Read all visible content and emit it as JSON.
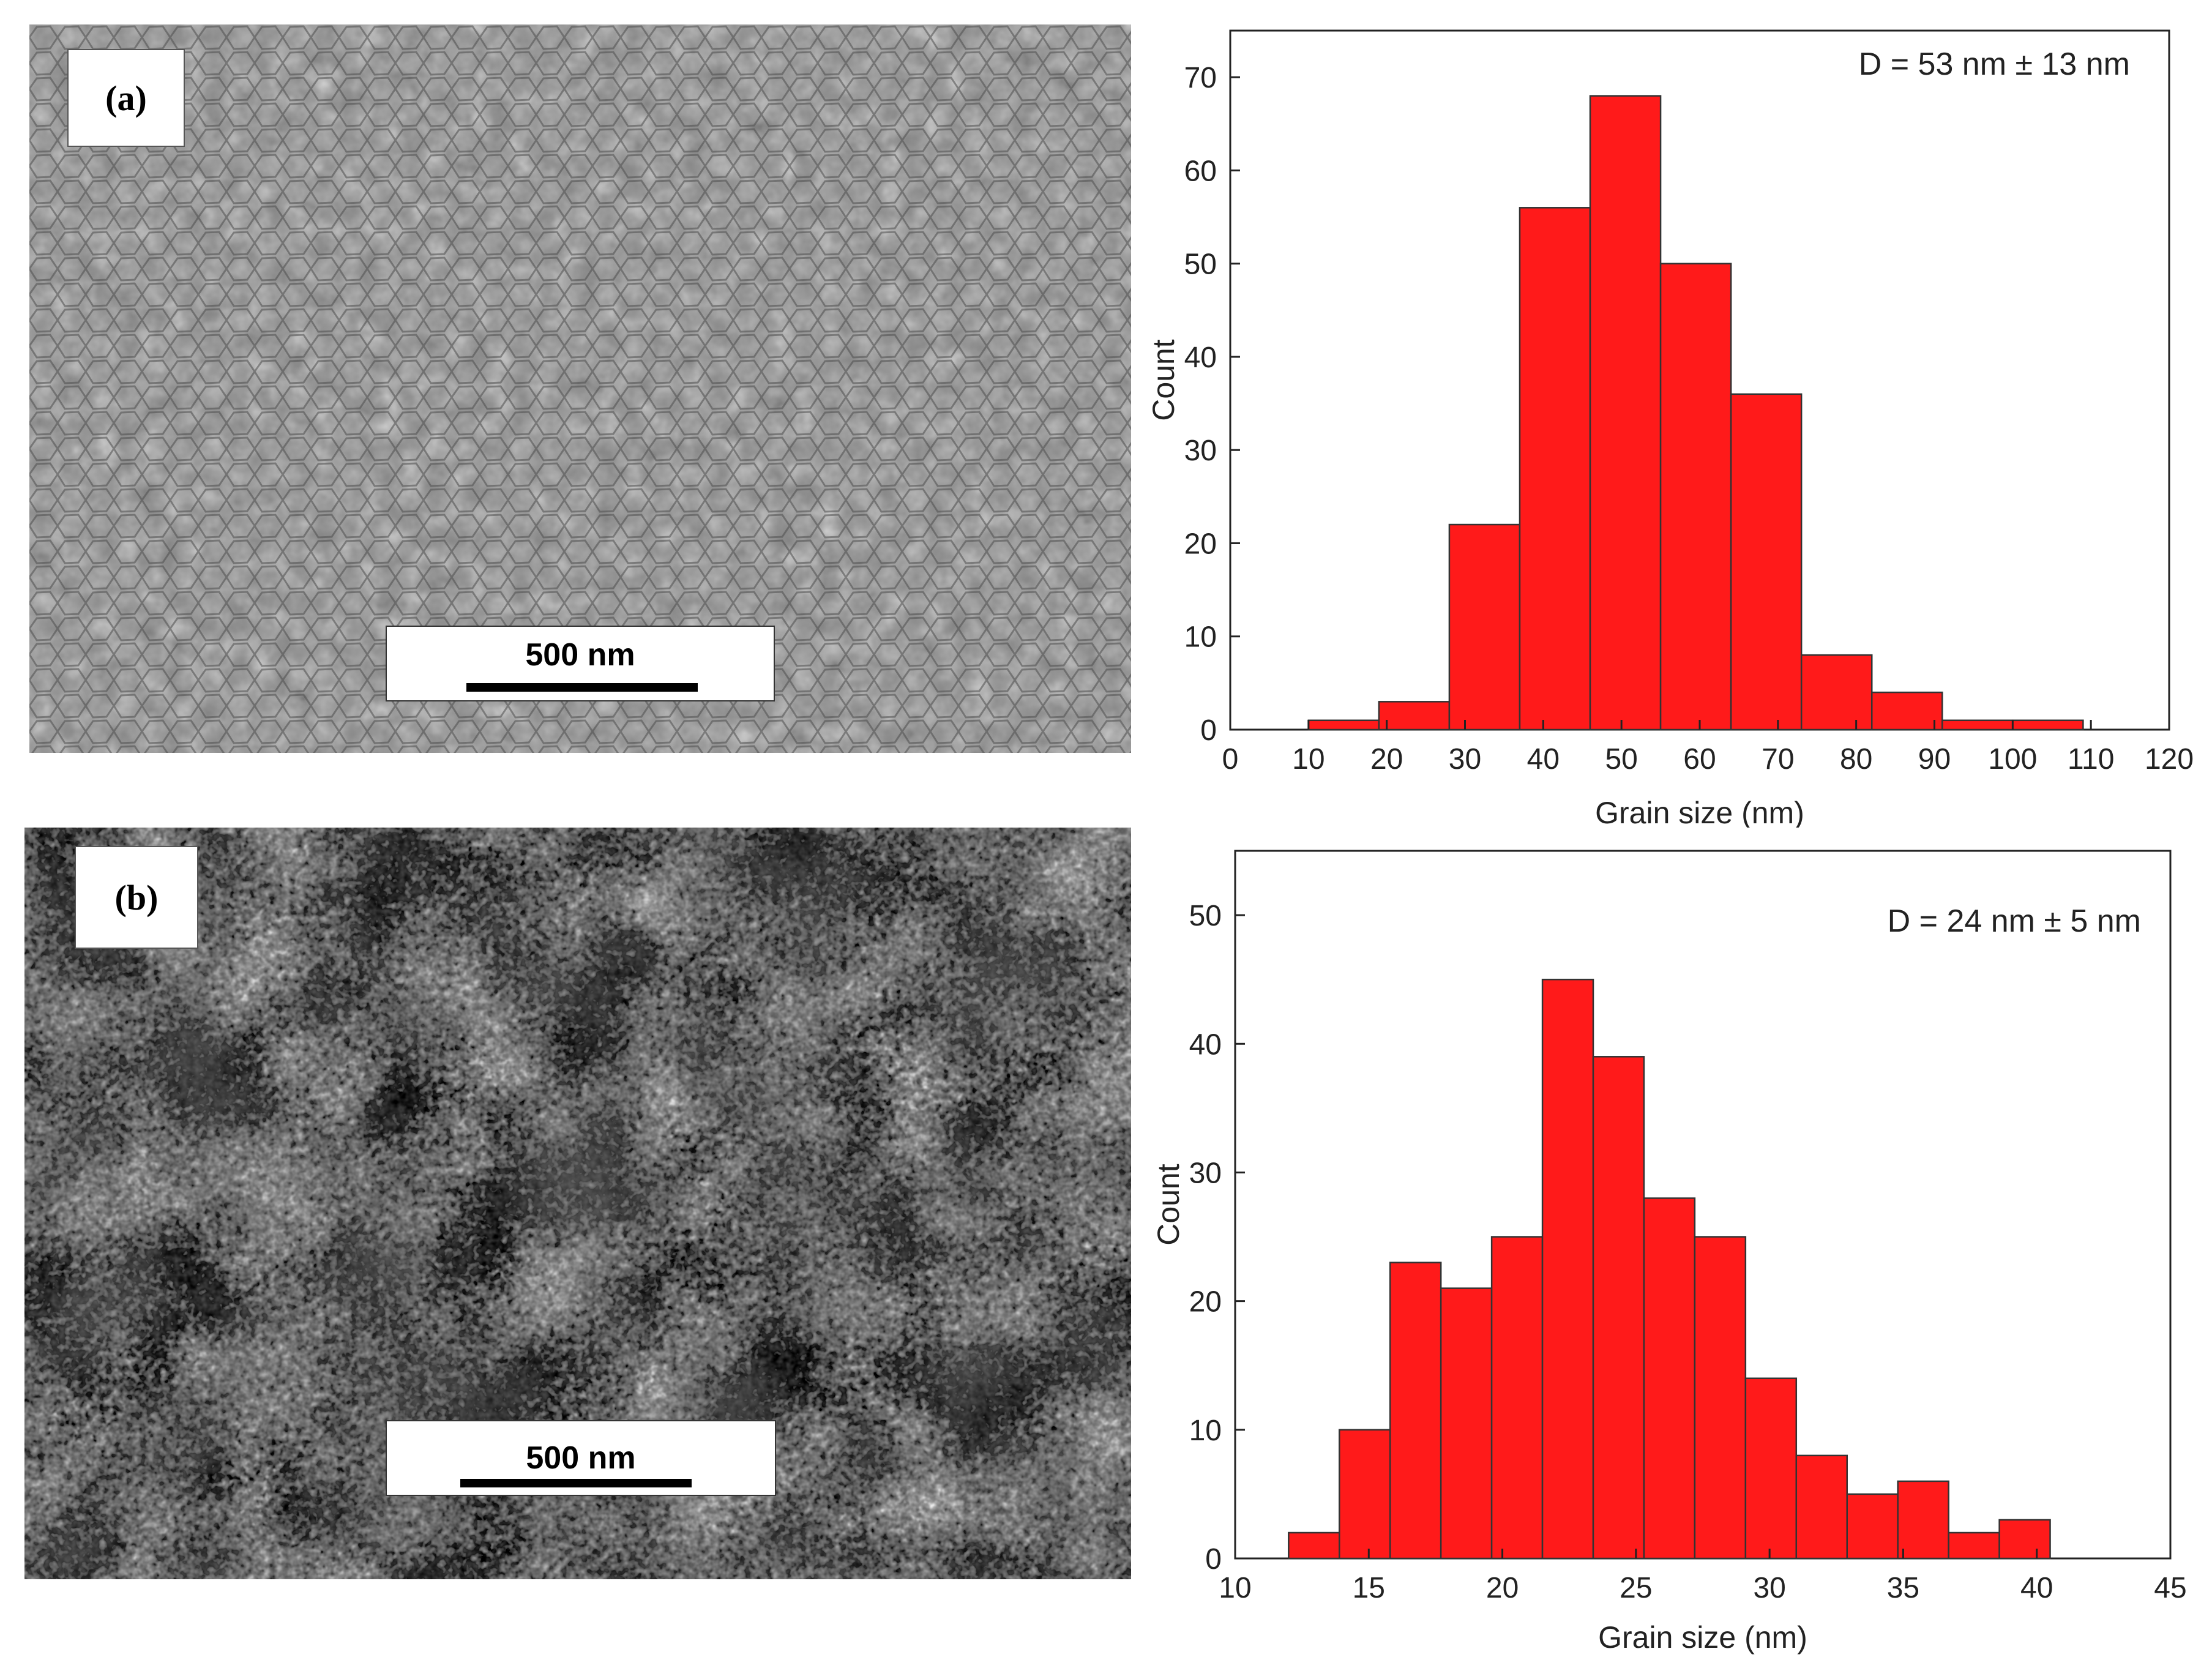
{
  "panels": [
    {
      "label": "(a)",
      "scale_bar": "500 nm",
      "image_style": "smooth-grains"
    },
    {
      "label": "(b)",
      "scale_bar": "500 nm",
      "image_style": "porous-aggregates"
    }
  ],
  "colors": {
    "bar_fill": "#ff1a1a",
    "bar_stroke": "#333333",
    "axis": "#222222"
  },
  "chart_data": [
    {
      "type": "bar",
      "annotation": "D = 53 nm ± 13 nm",
      "xlabel": "Grain size (nm)",
      "ylabel": "Count",
      "xlim": [
        0,
        120
      ],
      "ylim": [
        0,
        75
      ],
      "xticks": [
        0,
        10,
        20,
        30,
        40,
        50,
        60,
        70,
        80,
        90,
        100,
        110,
        120
      ],
      "yticks": [
        0,
        10,
        20,
        30,
        40,
        50,
        60,
        70
      ],
      "bin_width": 9,
      "bins": [
        {
          "start": 10,
          "count": 1
        },
        {
          "start": 19,
          "count": 3
        },
        {
          "start": 28,
          "count": 22
        },
        {
          "start": 37,
          "count": 56
        },
        {
          "start": 46,
          "count": 68
        },
        {
          "start": 55,
          "count": 50
        },
        {
          "start": 64,
          "count": 36
        },
        {
          "start": 73,
          "count": 8
        },
        {
          "start": 82,
          "count": 4
        },
        {
          "start": 91,
          "count": 1
        },
        {
          "start": 100,
          "count": 1
        }
      ]
    },
    {
      "type": "bar",
      "annotation": "D = 24 nm ± 5 nm",
      "xlabel": "Grain size (nm)",
      "ylabel": "Count",
      "xlim": [
        10,
        45
      ],
      "ylim": [
        0,
        55
      ],
      "xticks": [
        10,
        15,
        20,
        25,
        30,
        35,
        40,
        45
      ],
      "yticks": [
        0,
        10,
        20,
        30,
        40,
        50
      ],
      "bin_width": 1.9,
      "bins": [
        {
          "start": 12.0,
          "count": 2
        },
        {
          "start": 13.9,
          "count": 10
        },
        {
          "start": 15.8,
          "count": 23
        },
        {
          "start": 17.7,
          "count": 21
        },
        {
          "start": 19.6,
          "count": 25
        },
        {
          "start": 21.5,
          "count": 45
        },
        {
          "start": 23.4,
          "count": 39
        },
        {
          "start": 25.3,
          "count": 28
        },
        {
          "start": 27.2,
          "count": 25
        },
        {
          "start": 29.1,
          "count": 14
        },
        {
          "start": 31.0,
          "count": 8
        },
        {
          "start": 32.9,
          "count": 5
        },
        {
          "start": 34.8,
          "count": 6
        },
        {
          "start": 36.7,
          "count": 2
        },
        {
          "start": 38.6,
          "count": 3
        }
      ]
    }
  ]
}
